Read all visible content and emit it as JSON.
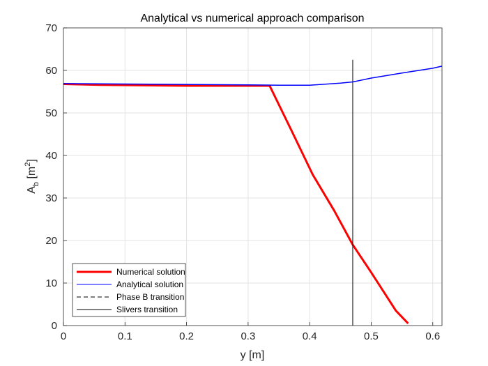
{
  "chart_data": {
    "type": "line",
    "title": "Analytical vs numerical approach comparison",
    "xlabel": "y [m]",
    "ylabel": {
      "base": "A",
      "subscript": "b",
      "unit_open": " [m",
      "superscript": "2",
      "unit_close": "]"
    },
    "xlim": [
      0,
      0.615
    ],
    "ylim": [
      0,
      70
    ],
    "xticks": [
      0,
      0.1,
      0.2,
      0.3,
      0.4,
      0.5,
      0.6
    ],
    "xtick_labels": [
      "0",
      "0.1",
      "0.2",
      "0.3",
      "0.4",
      "0.5",
      "0.6"
    ],
    "yticks": [
      0,
      10,
      20,
      30,
      40,
      50,
      60,
      70
    ],
    "ytick_labels": [
      "0",
      "10",
      "20",
      "30",
      "40",
      "50",
      "60",
      "70"
    ],
    "grid": true,
    "legend_position": "bottom-left",
    "series": [
      {
        "name": "Numerical solution",
        "color": "#ff0000",
        "style": "solid-thick",
        "x": [
          0,
          0.06,
          0.205,
          0.27,
          0.335,
          0.37,
          0.405,
          0.44,
          0.47,
          0.5,
          0.54,
          0.56
        ],
        "y": [
          56.8,
          56.6,
          56.4,
          56.4,
          56.4,
          46.0,
          35.5,
          27.0,
          19.0,
          12.5,
          3.5,
          0.5
        ]
      },
      {
        "name": "Analytical solution",
        "color": "#0000ff",
        "style": "solid",
        "x": [
          0,
          0.1,
          0.2,
          0.3,
          0.35,
          0.4,
          0.45,
          0.47,
          0.5,
          0.55,
          0.6,
          0.615
        ],
        "y": [
          56.9,
          56.8,
          56.7,
          56.6,
          56.5,
          56.5,
          57.0,
          57.3,
          58.2,
          59.4,
          60.5,
          61.0
        ]
      },
      {
        "name": "Phase B transition",
        "color": "#000000",
        "style": "dashed",
        "x": [],
        "y": []
      },
      {
        "name": "Slivers transition",
        "color": "#000000",
        "style": "vertical-line",
        "x_value": 0.47,
        "y_range": [
          0,
          62.5
        ]
      }
    ]
  }
}
